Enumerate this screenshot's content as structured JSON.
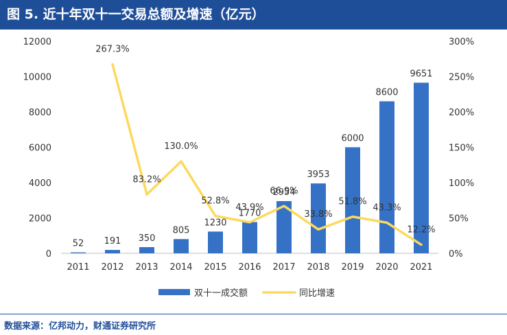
{
  "header": {
    "title": "图 5. 近十年双十一交易总额及增速（亿元）"
  },
  "footer": {
    "source": "数据来源：亿邦动力，财通证券研究所"
  },
  "colors": {
    "bar": "#3572c6",
    "line": "#fcd95e",
    "title_bg": "#1f4e99",
    "text": "#333333"
  },
  "chart_data": {
    "type": "bar",
    "title": "近十年双十一交易总额及增速（亿元）",
    "categories": [
      "2011",
      "2012",
      "2013",
      "2014",
      "2015",
      "2016",
      "2017",
      "2018",
      "2019",
      "2020",
      "2021"
    ],
    "series": [
      {
        "name": "双十一成交额",
        "type": "bar",
        "axis": "left",
        "values": [
          52,
          191,
          350,
          805,
          1230,
          1770,
          2954,
          3953,
          6000,
          8600,
          9651
        ],
        "labels": [
          "52",
          "191",
          "350",
          "805",
          "1230",
          "1770",
          "2954",
          "3953",
          "6000",
          "8600",
          "9651"
        ]
      },
      {
        "name": "同比增速",
        "type": "line",
        "axis": "right",
        "values": [
          null,
          267.3,
          83.2,
          130.0,
          52.8,
          43.9,
          66.9,
          33.8,
          51.8,
          43.3,
          12.2
        ],
        "labels": [
          "",
          "267.3%",
          "83.2%",
          "130.0%",
          "52.8%",
          "43.9%",
          "66.9%",
          "33.8%",
          "51.8%",
          "43.3%",
          "12.2%"
        ]
      }
    ],
    "left_axis": {
      "min": 0,
      "max": 12000,
      "ticks": [
        "0",
        "2000",
        "4000",
        "6000",
        "8000",
        "10000",
        "12000"
      ],
      "tick_values": [
        0,
        2000,
        4000,
        6000,
        8000,
        10000,
        12000
      ]
    },
    "right_axis": {
      "min": 0,
      "max": 300,
      "ticks": [
        "0%",
        "50%",
        "100%",
        "150%",
        "200%",
        "250%",
        "300%"
      ],
      "tick_values": [
        0,
        50,
        100,
        150,
        200,
        250,
        300
      ]
    },
    "legend": {
      "position": "bottom",
      "entries": [
        "双十一成交额",
        "同比增速"
      ]
    },
    "grid": false
  }
}
